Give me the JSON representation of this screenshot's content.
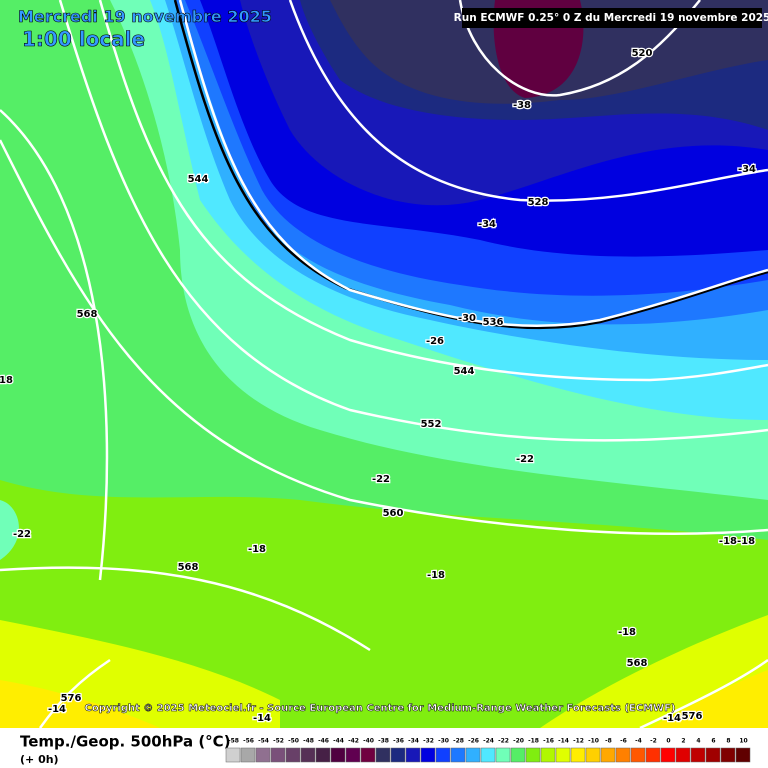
{
  "header": {
    "date": "Mercredi 19 novembre 2025",
    "time": "1:00 locale",
    "run": "Run ECMWF 0.25° 0 Z du Mercredi 19 novembre 2025"
  },
  "contour_labels": [
    "520",
    "-38",
    "-34",
    "528",
    "-34",
    "544",
    "568",
    "-30",
    "536",
    "-26",
    "544",
    "18",
    "552",
    "-22",
    "-22",
    "560",
    "-22",
    "-18",
    "-18-18",
    "568",
    "-18",
    "-18",
    "568",
    "576",
    "-14",
    "-14",
    "-14",
    "576"
  ],
  "copyright": "Copyright © 2025 Meteociel.fr - Source European Centre for Medium-Range Weather Forecasts (ECMWF)",
  "footer": {
    "title": "Temp./Geop. 500hPa (°C)",
    "step": "(+ 0h)"
  },
  "legend": {
    "values": [
      -58,
      -56,
      -54,
      -52,
      -50,
      -48,
      -46,
      -44,
      -42,
      -40,
      -38,
      -36,
      -34,
      -32,
      -30,
      -28,
      -26,
      -24,
      -22,
      -20,
      -18,
      -16,
      -14,
      -12,
      -10,
      -8,
      -6,
      -4,
      -2,
      0,
      2,
      4,
      6,
      8,
      10
    ],
    "colors": [
      "#d0d0d0",
      "#a8a8a8",
      "#907090",
      "#7a507a",
      "#684068",
      "#563056",
      "#462046",
      "#500040",
      "#600050",
      "#700040",
      "#303060",
      "#1c2a80",
      "#1818b8",
      "#0000e0",
      "#1040ff",
      "#1e78ff",
      "#30b0ff",
      "#50e8ff",
      "#70ffb8",
      "#55ee66",
      "#80ee10",
      "#b0f800",
      "#e0ff00",
      "#ffee00",
      "#ffd000",
      "#ffa800",
      "#ff8000",
      "#ff5800",
      "#ff3000",
      "#ff0000",
      "#e00000",
      "#c00000",
      "#a00000",
      "#800000",
      "#600000"
    ]
  }
}
